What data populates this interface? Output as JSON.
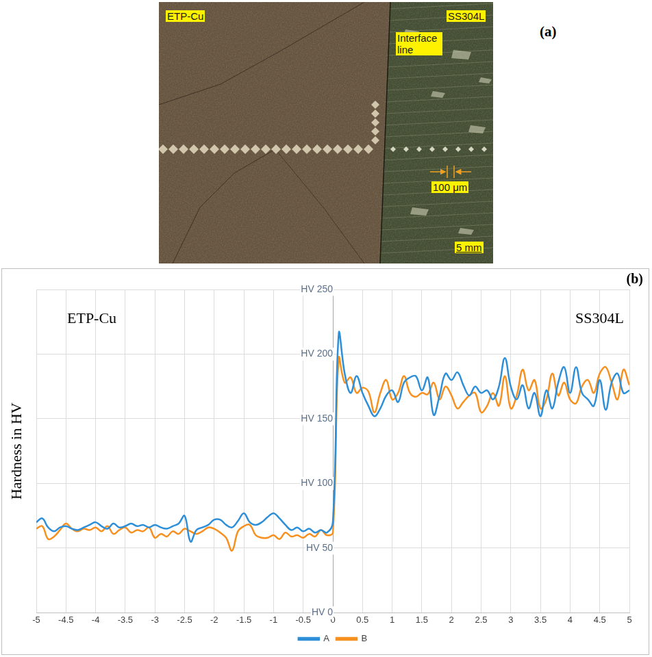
{
  "micrograph": {
    "panel_label": "(a)",
    "left_material": "ETP-Cu",
    "right_material": "SS304L",
    "interface_label": "Interface line",
    "spacing_label": "100 μm",
    "scale_bar": "5 mm"
  },
  "chart_data": {
    "type": "line",
    "panel_label": "(b)",
    "left_label": "ETP-Cu",
    "right_label": "SS304L",
    "ylabel": "Hardness in HV",
    "x": [
      -5,
      -4.9,
      -4.8,
      -4.7,
      -4.6,
      -4.5,
      -4.4,
      -4.3,
      -4.2,
      -4.1,
      -4,
      -3.9,
      -3.8,
      -3.7,
      -3.6,
      -3.5,
      -3.4,
      -3.3,
      -3.2,
      -3.1,
      -3,
      -2.9,
      -2.8,
      -2.7,
      -2.6,
      -2.5,
      -2.4,
      -2.3,
      -2.2,
      -2.1,
      -2,
      -1.9,
      -1.8,
      -1.7,
      -1.6,
      -1.5,
      -1.4,
      -1.3,
      -1.2,
      -1.1,
      -1,
      -0.9,
      -0.8,
      -0.7,
      -0.6,
      -0.5,
      -0.4,
      -0.3,
      -0.2,
      -0.1,
      0,
      0.1,
      0.2,
      0.3,
      0.4,
      0.5,
      0.6,
      0.7,
      0.8,
      0.9,
      1,
      1.1,
      1.2,
      1.3,
      1.4,
      1.5,
      1.6,
      1.7,
      1.8,
      1.9,
      2,
      2.1,
      2.2,
      2.3,
      2.4,
      2.5,
      2.6,
      2.7,
      2.8,
      2.9,
      3,
      3.1,
      3.2,
      3.3,
      3.4,
      3.5,
      3.6,
      3.7,
      3.8,
      3.9,
      4,
      4.1,
      4.2,
      4.3,
      4.4,
      4.5,
      4.6,
      4.7,
      4.8,
      4.9,
      5
    ],
    "series": [
      {
        "name": "A",
        "color": "#2e8fd9",
        "marker": "none",
        "line_style": "smooth",
        "values": [
          70,
          73,
          66,
          63,
          66,
          67,
          65,
          64,
          66,
          68,
          70,
          67,
          65,
          69,
          66,
          67,
          69,
          67,
          68,
          66,
          68,
          66,
          65,
          67,
          69,
          75,
          55,
          64,
          66,
          68,
          72,
          72,
          68,
          66,
          71,
          77,
          70,
          68,
          70,
          74,
          77,
          73,
          68,
          64,
          66,
          63,
          65,
          62,
          64,
          62,
          70,
          216,
          185,
          170,
          183,
          170,
          160,
          152,
          158,
          168,
          172,
          163,
          178,
          182,
          183,
          172,
          182,
          153,
          168,
          185,
          180,
          186,
          176,
          168,
          175,
          170,
          172,
          165,
          175,
          197,
          175,
          165,
          176,
          158,
          170,
          152,
          172,
          158,
          178,
          190,
          170,
          190,
          170,
          165,
          160,
          180,
          157,
          178,
          185,
          170,
          172
        ]
      },
      {
        "name": "B",
        "color": "#f7901e",
        "marker": "none",
        "line_style": "smooth",
        "values": [
          65,
          67,
          57,
          59,
          64,
          69,
          65,
          63,
          65,
          64,
          66,
          63,
          67,
          61,
          64,
          66,
          62,
          64,
          63,
          66,
          58,
          61,
          59,
          63,
          61,
          65,
          63,
          61,
          63,
          66,
          65,
          62,
          58,
          48,
          63,
          67,
          68,
          60,
          58,
          58,
          60,
          57,
          62,
          59,
          60,
          58,
          61,
          59,
          64,
          60,
          62,
          197,
          178,
          182,
          170,
          174,
          171,
          155,
          170,
          180,
          165,
          170,
          183,
          170,
          167,
          170,
          169,
          178,
          165,
          175,
          168,
          158,
          163,
          168,
          170,
          155,
          160,
          170,
          160,
          183,
          158,
          168,
          188,
          172,
          180,
          158,
          165,
          185,
          168,
          178,
          165,
          162,
          175,
          180,
          170,
          185,
          190,
          178,
          165,
          188,
          176
        ]
      }
    ],
    "xlim": [
      -5,
      5
    ],
    "xticks": [
      -5,
      -4.5,
      -4,
      -3.5,
      -3,
      -2.5,
      -2,
      -1.5,
      -1,
      -0.5,
      0,
      0.5,
      1,
      1.5,
      2,
      2.5,
      3,
      3.5,
      4,
      4.5,
      5
    ],
    "ylim": [
      0,
      250
    ],
    "yticks": [
      {
        "value": 0,
        "label": "HV 0"
      },
      {
        "value": 50,
        "label": "HV 50"
      },
      {
        "value": 100,
        "label": "HV 100"
      },
      {
        "value": 150,
        "label": "HV 150"
      },
      {
        "value": 200,
        "label": "HV 200"
      },
      {
        "value": 250,
        "label": "HV 250"
      }
    ],
    "grid": true,
    "legend": "bottom"
  }
}
